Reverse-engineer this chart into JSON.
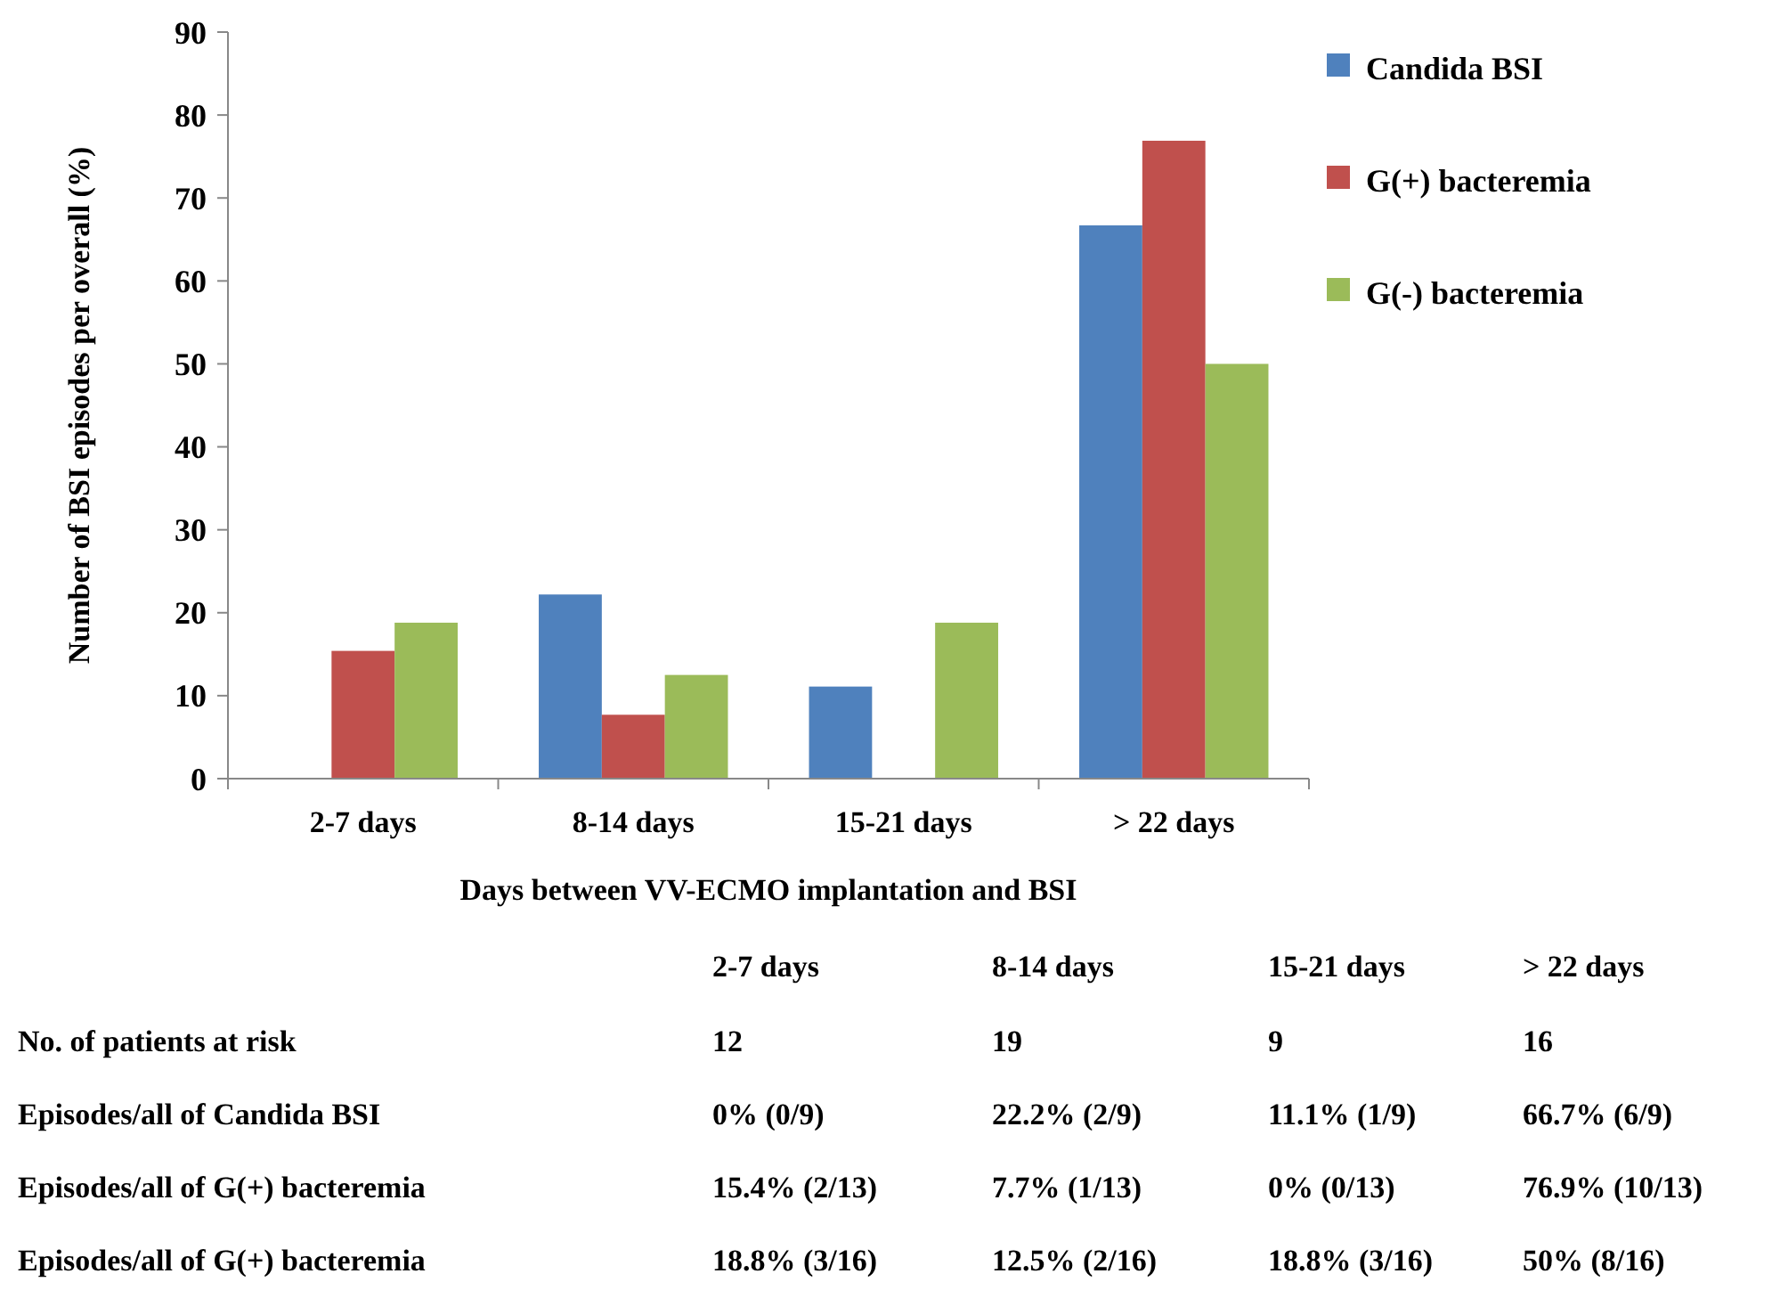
{
  "chart_data": {
    "type": "bar",
    "xlabel": "Days between VV-ECMO implantation and BSI",
    "ylabel": "Number of BSI episodes per overall (%)",
    "categories": [
      "2-7 days",
      "8-14 days",
      "15-21 days",
      "> 22 days"
    ],
    "series": [
      {
        "name": "Candida BSI",
        "color": "#4f81bd",
        "values": [
          0,
          22.2,
          11.1,
          66.7
        ]
      },
      {
        "name": "G(+) bacteremia",
        "color": "#c0504d",
        "values": [
          15.4,
          7.7,
          0,
          76.9
        ]
      },
      {
        "name": "G(-) bacteremia",
        "color": "#9bbb59",
        "values": [
          18.8,
          12.5,
          18.8,
          50
        ]
      }
    ],
    "ylim": [
      0,
      90
    ],
    "yticks": [
      0,
      10,
      20,
      30,
      40,
      50,
      60,
      70,
      80,
      90
    ],
    "grid": false,
    "legend": "right",
    "annotations": [
      "No. of patients at risk",
      "12",
      "19",
      "9",
      "16",
      "Episodes/all of Candida BSI",
      "0% (0/9)",
      "22.2% (2/9)",
      "11.1% (1/9)",
      "66.7% (6/9)",
      "Episodes/all of G(+) bacteremia",
      "15.4% (2/13)",
      "7.7% (1/13)",
      "0% (0/13)",
      "76.9% (10/13)",
      "Episodes/all of G(+) bacteremia",
      "18.8% (3/16)",
      "12.5% (2/16)",
      "18.8% (3/16)",
      "50% (8/16)"
    ]
  }
}
